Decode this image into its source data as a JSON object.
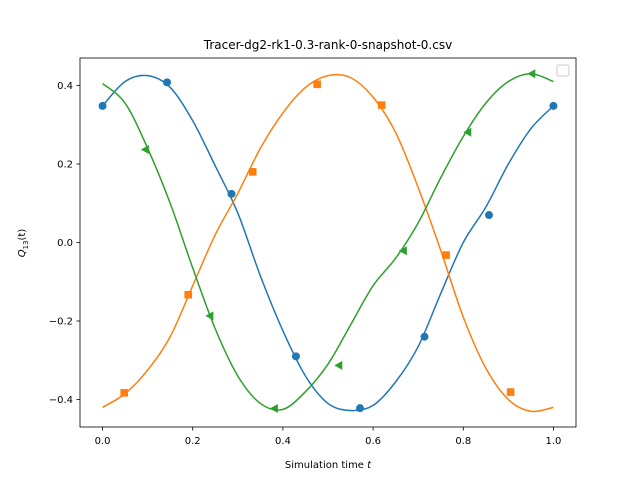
{
  "chart_data": {
    "type": "line",
    "title": "Tracer-dg2-rk1-0.3-rank-0-snapshot-0.csv",
    "xlabel_text": "Simulation time ",
    "xlabel_var": "t",
    "ylabel_var": "Q",
    "ylabel_sub": "13",
    "ylabel_arg": "(t)",
    "xlim": [
      -0.05,
      1.05
    ],
    "ylim": [
      -0.47,
      0.47
    ],
    "xticks": [
      0.0,
      0.2,
      0.4,
      0.6,
      0.8,
      1.0
    ],
    "xtick_labels": [
      "0.0",
      "0.2",
      "0.4",
      "0.6",
      "0.8",
      "1.0"
    ],
    "yticks": [
      0.4,
      0.2,
      0.0,
      -0.2,
      -0.4
    ],
    "ytick_labels": [
      "0.4",
      "0.2",
      "0.0",
      "−0.2",
      "−0.4"
    ],
    "legend": {
      "placement": "top-right",
      "entries": []
    },
    "grid": false,
    "series": [
      {
        "color": "#1f77b4",
        "marker": "circle",
        "curve": {
          "x": [
            0,
            0.05,
            0.1,
            0.15,
            0.2,
            0.25,
            0.3,
            0.35,
            0.4,
            0.45,
            0.5,
            0.55,
            0.6,
            0.65,
            0.7,
            0.75,
            0.8,
            0.85,
            0.9,
            0.95,
            1.0
          ],
          "y": [
            0.348,
            0.41,
            0.425,
            0.395,
            0.31,
            0.195,
            0.075,
            -0.085,
            -0.225,
            -0.34,
            -0.41,
            -0.428,
            -0.415,
            -0.355,
            -0.265,
            -0.13,
            0.0,
            0.09,
            0.2,
            0.29,
            0.348
          ]
        },
        "markers": {
          "x": [
            0.0,
            0.143,
            0.286,
            0.429,
            0.571,
            0.714,
            0.857,
            1.0
          ],
          "y": [
            0.348,
            0.408,
            0.124,
            -0.29,
            -0.422,
            -0.24,
            0.07,
            0.348
          ]
        }
      },
      {
        "color": "#ff7f0e",
        "marker": "square",
        "curve": {
          "x": [
            0,
            0.05,
            0.1,
            0.15,
            0.2,
            0.25,
            0.3,
            0.35,
            0.4,
            0.45,
            0.5,
            0.55,
            0.6,
            0.65,
            0.7,
            0.75,
            0.8,
            0.85,
            0.9,
            0.95,
            1.0
          ],
          "y": [
            -0.42,
            -0.385,
            -0.325,
            -0.24,
            -0.11,
            0.02,
            0.125,
            0.24,
            0.33,
            0.395,
            0.425,
            0.42,
            0.37,
            0.28,
            0.14,
            -0.02,
            -0.19,
            -0.32,
            -0.4,
            -0.43,
            -0.42
          ]
        },
        "markers": {
          "x": [
            0.048,
            0.19,
            0.333,
            0.476,
            0.619,
            0.762,
            0.905
          ],
          "y": [
            -0.383,
            -0.133,
            0.18,
            0.403,
            0.35,
            -0.032,
            -0.381
          ]
        }
      },
      {
        "color": "#2ca02c",
        "marker": "triangle-left",
        "curve": {
          "x": [
            0,
            0.05,
            0.1,
            0.15,
            0.2,
            0.25,
            0.3,
            0.35,
            0.4,
            0.45,
            0.5,
            0.55,
            0.6,
            0.65,
            0.7,
            0.75,
            0.8,
            0.85,
            0.9,
            0.95,
            1.0
          ],
          "y": [
            0.405,
            0.355,
            0.24,
            0.1,
            -0.065,
            -0.22,
            -0.34,
            -0.41,
            -0.425,
            -0.38,
            -0.31,
            -0.21,
            -0.11,
            -0.04,
            0.05,
            0.165,
            0.27,
            0.355,
            0.41,
            0.43,
            0.41
          ]
        },
        "markers": {
          "x": [
            0.095,
            0.238,
            0.381,
            0.524,
            0.667,
            0.81,
            0.952
          ],
          "y": [
            0.237,
            -0.187,
            -0.423,
            -0.313,
            -0.021,
            0.281,
            0.43
          ]
        }
      }
    ]
  }
}
